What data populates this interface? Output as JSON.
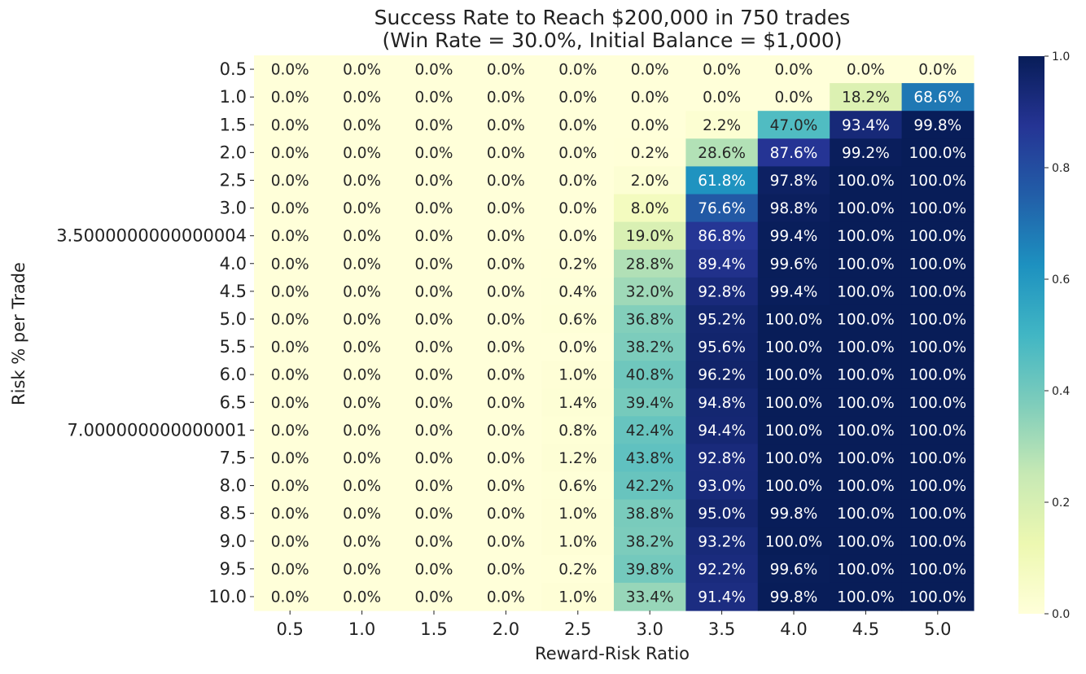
{
  "chart_data": {
    "type": "heatmap",
    "title_lines": [
      "Success Rate to Reach $200,000 in 750 trades",
      "(Win Rate = 30.0%, Initial Balance = $1,000)"
    ],
    "xlabel": "Reward-Risk Ratio",
    "ylabel": "Risk % per Trade",
    "x_ticks": [
      "0.5",
      "1.0",
      "1.5",
      "2.0",
      "2.5",
      "3.0",
      "3.5",
      "4.0",
      "4.5",
      "5.0"
    ],
    "y_ticks": [
      "0.5",
      "1.0",
      "1.5",
      "2.0",
      "2.5",
      "3.0",
      "3.5000000000000004",
      "4.0",
      "4.5",
      "5.0",
      "5.5",
      "6.0",
      "6.5",
      "7.000000000000001",
      "7.5",
      "8.0",
      "8.5",
      "9.0",
      "9.5",
      "10.0"
    ],
    "values": [
      [
        0.0,
        0.0,
        0.0,
        0.0,
        0.0,
        0.0,
        0.0,
        0.0,
        0.0,
        0.0
      ],
      [
        0.0,
        0.0,
        0.0,
        0.0,
        0.0,
        0.0,
        0.0,
        0.0,
        0.182,
        0.686
      ],
      [
        0.0,
        0.0,
        0.0,
        0.0,
        0.0,
        0.0,
        0.022,
        0.47,
        0.934,
        0.998
      ],
      [
        0.0,
        0.0,
        0.0,
        0.0,
        0.0,
        0.002,
        0.286,
        0.876,
        0.992,
        1.0
      ],
      [
        0.0,
        0.0,
        0.0,
        0.0,
        0.0,
        0.02,
        0.618,
        0.978,
        1.0,
        1.0
      ],
      [
        0.0,
        0.0,
        0.0,
        0.0,
        0.0,
        0.08,
        0.766,
        0.988,
        1.0,
        1.0
      ],
      [
        0.0,
        0.0,
        0.0,
        0.0,
        0.0,
        0.19,
        0.868,
        0.994,
        1.0,
        1.0
      ],
      [
        0.0,
        0.0,
        0.0,
        0.0,
        0.002,
        0.288,
        0.894,
        0.996,
        1.0,
        1.0
      ],
      [
        0.0,
        0.0,
        0.0,
        0.0,
        0.004,
        0.32,
        0.928,
        0.994,
        1.0,
        1.0
      ],
      [
        0.0,
        0.0,
        0.0,
        0.0,
        0.006,
        0.368,
        0.952,
        1.0,
        1.0,
        1.0
      ],
      [
        0.0,
        0.0,
        0.0,
        0.0,
        0.0,
        0.382,
        0.956,
        1.0,
        1.0,
        1.0
      ],
      [
        0.0,
        0.0,
        0.0,
        0.0,
        0.01,
        0.408,
        0.962,
        1.0,
        1.0,
        1.0
      ],
      [
        0.0,
        0.0,
        0.0,
        0.0,
        0.014,
        0.394,
        0.948,
        1.0,
        1.0,
        1.0
      ],
      [
        0.0,
        0.0,
        0.0,
        0.0,
        0.008,
        0.424,
        0.944,
        1.0,
        1.0,
        1.0
      ],
      [
        0.0,
        0.0,
        0.0,
        0.0,
        0.012,
        0.438,
        0.928,
        1.0,
        1.0,
        1.0
      ],
      [
        0.0,
        0.0,
        0.0,
        0.0,
        0.006,
        0.422,
        0.93,
        1.0,
        1.0,
        1.0
      ],
      [
        0.0,
        0.0,
        0.0,
        0.0,
        0.01,
        0.388,
        0.95,
        0.998,
        1.0,
        1.0
      ],
      [
        0.0,
        0.0,
        0.0,
        0.0,
        0.01,
        0.382,
        0.932,
        1.0,
        1.0,
        1.0
      ],
      [
        0.0,
        0.0,
        0.0,
        0.0,
        0.002,
        0.398,
        0.922,
        0.996,
        1.0,
        1.0
      ],
      [
        0.0,
        0.0,
        0.0,
        0.0,
        0.01,
        0.334,
        0.914,
        0.998,
        1.0,
        1.0
      ]
    ],
    "cell_labels": [
      [
        "0.0%",
        "0.0%",
        "0.0%",
        "0.0%",
        "0.0%",
        "0.0%",
        "0.0%",
        "0.0%",
        "0.0%",
        "0.0%"
      ],
      [
        "0.0%",
        "0.0%",
        "0.0%",
        "0.0%",
        "0.0%",
        "0.0%",
        "0.0%",
        "0.0%",
        "18.2%",
        "68.6%"
      ],
      [
        "0.0%",
        "0.0%",
        "0.0%",
        "0.0%",
        "0.0%",
        "0.0%",
        "2.2%",
        "47.0%",
        "93.4%",
        "99.8%"
      ],
      [
        "0.0%",
        "0.0%",
        "0.0%",
        "0.0%",
        "0.0%",
        "0.2%",
        "28.6%",
        "87.6%",
        "99.2%",
        "100.0%"
      ],
      [
        "0.0%",
        "0.0%",
        "0.0%",
        "0.0%",
        "0.0%",
        "2.0%",
        "61.8%",
        "97.8%",
        "100.0%",
        "100.0%"
      ],
      [
        "0.0%",
        "0.0%",
        "0.0%",
        "0.0%",
        "0.0%",
        "8.0%",
        "76.6%",
        "98.8%",
        "100.0%",
        "100.0%"
      ],
      [
        "0.0%",
        "0.0%",
        "0.0%",
        "0.0%",
        "0.0%",
        "19.0%",
        "86.8%",
        "99.4%",
        "100.0%",
        "100.0%"
      ],
      [
        "0.0%",
        "0.0%",
        "0.0%",
        "0.0%",
        "0.2%",
        "28.8%",
        "89.4%",
        "99.6%",
        "100.0%",
        "100.0%"
      ],
      [
        "0.0%",
        "0.0%",
        "0.0%",
        "0.0%",
        "0.4%",
        "32.0%",
        "92.8%",
        "99.4%",
        "100.0%",
        "100.0%"
      ],
      [
        "0.0%",
        "0.0%",
        "0.0%",
        "0.0%",
        "0.6%",
        "36.8%",
        "95.2%",
        "100.0%",
        "100.0%",
        "100.0%"
      ],
      [
        "0.0%",
        "0.0%",
        "0.0%",
        "0.0%",
        "0.0%",
        "38.2%",
        "95.6%",
        "100.0%",
        "100.0%",
        "100.0%"
      ],
      [
        "0.0%",
        "0.0%",
        "0.0%",
        "0.0%",
        "1.0%",
        "40.8%",
        "96.2%",
        "100.0%",
        "100.0%",
        "100.0%"
      ],
      [
        "0.0%",
        "0.0%",
        "0.0%",
        "0.0%",
        "1.4%",
        "39.4%",
        "94.8%",
        "100.0%",
        "100.0%",
        "100.0%"
      ],
      [
        "0.0%",
        "0.0%",
        "0.0%",
        "0.0%",
        "0.8%",
        "42.4%",
        "94.4%",
        "100.0%",
        "100.0%",
        "100.0%"
      ],
      [
        "0.0%",
        "0.0%",
        "0.0%",
        "0.0%",
        "1.2%",
        "43.8%",
        "92.8%",
        "100.0%",
        "100.0%",
        "100.0%"
      ],
      [
        "0.0%",
        "0.0%",
        "0.0%",
        "0.0%",
        "0.6%",
        "42.2%",
        "93.0%",
        "100.0%",
        "100.0%",
        "100.0%"
      ],
      [
        "0.0%",
        "0.0%",
        "0.0%",
        "0.0%",
        "1.0%",
        "38.8%",
        "95.0%",
        "99.8%",
        "100.0%",
        "100.0%"
      ],
      [
        "0.0%",
        "0.0%",
        "0.0%",
        "0.0%",
        "1.0%",
        "38.2%",
        "93.2%",
        "100.0%",
        "100.0%",
        "100.0%"
      ],
      [
        "0.0%",
        "0.0%",
        "0.0%",
        "0.0%",
        "0.2%",
        "39.8%",
        "92.2%",
        "99.6%",
        "100.0%",
        "100.0%"
      ],
      [
        "0.0%",
        "0.0%",
        "0.0%",
        "0.0%",
        "1.0%",
        "33.4%",
        "91.4%",
        "99.8%",
        "100.0%",
        "100.0%"
      ]
    ],
    "colormap": "YlGnBu",
    "colorbar_range": [
      0,
      1
    ],
    "colorbar_ticks": [
      "0.0",
      "0.2",
      "0.4",
      "0.6",
      "0.8",
      "1.0"
    ],
    "grid": false
  }
}
